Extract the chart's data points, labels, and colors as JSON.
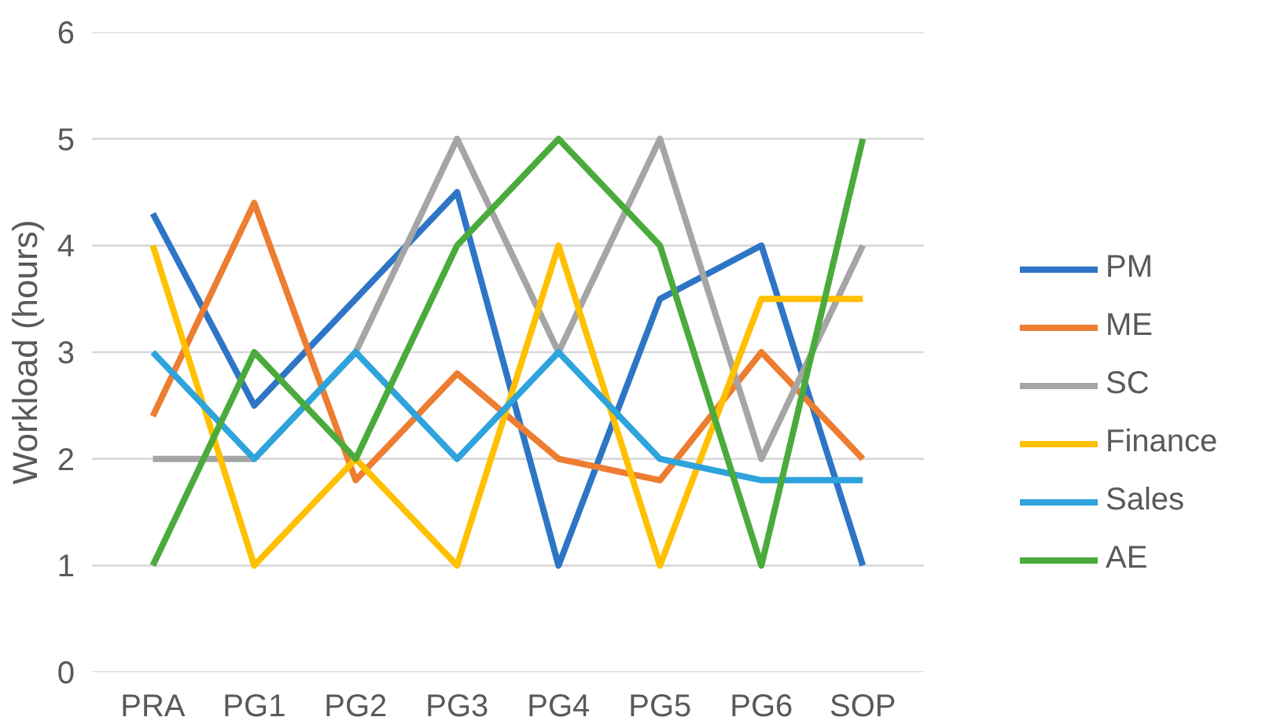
{
  "chart_data": {
    "type": "line",
    "ylabel": "Workload (hours)",
    "categories": [
      "PRA",
      "PG1",
      "PG2",
      "PG3",
      "PG4",
      "PG5",
      "PG6",
      "SOP"
    ],
    "ylim": [
      0,
      6
    ],
    "yticks": [
      0,
      1,
      2,
      3,
      4,
      5,
      6
    ],
    "grid": "y",
    "legend": "right",
    "marker": "none",
    "line_style": "solid",
    "series": [
      {
        "name": "PM",
        "color": "#2e75c6",
        "values": [
          4.3,
          2.5,
          3.5,
          4.5,
          1,
          3.5,
          4,
          1
        ]
      },
      {
        "name": "ME",
        "color": "#ed7d31",
        "values": [
          2.4,
          4.4,
          1.8,
          2.8,
          2,
          1.8,
          3,
          2
        ]
      },
      {
        "name": "SC",
        "color": "#a5a5a5",
        "values": [
          2,
          2,
          3,
          5,
          3,
          5,
          2,
          4
        ]
      },
      {
        "name": "Finance",
        "color": "#ffc000",
        "values": [
          4,
          1,
          2,
          1,
          4,
          1,
          3.5,
          3.5
        ]
      },
      {
        "name": "Sales",
        "color": "#2ea3dc",
        "values": [
          3,
          2,
          3,
          2,
          3,
          2,
          1.8,
          1.8
        ]
      },
      {
        "name": "AE",
        "color": "#4aab3c",
        "values": [
          1,
          3,
          2,
          4,
          5,
          4,
          1,
          5
        ]
      }
    ]
  }
}
